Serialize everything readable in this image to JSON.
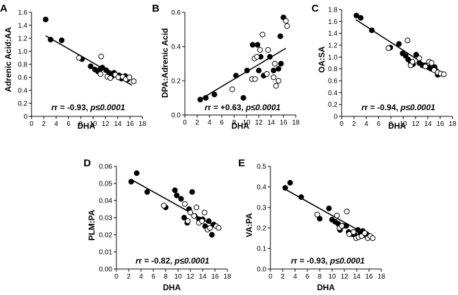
{
  "chart_data": [
    {
      "type": "scatter",
      "panel_label": "A",
      "xlabel": "DHA",
      "ylabel": "Adrenic Acid:AA",
      "xlim": [
        0,
        18
      ],
      "ylim": [
        0,
        1.6
      ],
      "xticks": [
        "0",
        "2",
        "4",
        "6",
        "8",
        "10",
        "12",
        "14",
        "16",
        "18"
      ],
      "yticks": [
        "0",
        "0.2",
        "0.4",
        "0.6",
        "0.8",
        "1.0",
        "1.2",
        "1.4",
        "1.6"
      ],
      "stat_r": "r = -0.93, ",
      "stat_p": "p≤0.0001",
      "fit": [
        [
          2.3,
          1.24
        ],
        [
          16.3,
          0.48
        ]
      ],
      "series": [
        {
          "name": "filled",
          "points": [
            [
              2.3,
              1.49
            ],
            [
              3.1,
              1.18
            ],
            [
              4.9,
              1.17
            ],
            [
              8.2,
              0.88
            ],
            [
              9.6,
              0.77
            ],
            [
              10.3,
              0.72
            ],
            [
              10.8,
              0.69
            ],
            [
              11.2,
              0.73
            ],
            [
              11.5,
              0.75
            ],
            [
              12.1,
              0.71
            ],
            [
              12.6,
              0.67
            ],
            [
              13.1,
              0.62
            ],
            [
              13.4,
              0.67
            ],
            [
              14.2,
              0.63
            ],
            [
              14.6,
              0.58
            ],
            [
              15.2,
              0.62
            ],
            [
              15.6,
              0.57
            ]
          ]
        },
        {
          "name": "open",
          "points": [
            [
              7.7,
              0.9
            ],
            [
              11.3,
              0.92
            ],
            [
              11.2,
              0.65
            ],
            [
              12.3,
              0.61
            ],
            [
              12.8,
              0.59
            ],
            [
              13.6,
              0.64
            ],
            [
              14.1,
              0.6
            ],
            [
              14.8,
              0.61
            ],
            [
              15.3,
              0.57
            ],
            [
              15.9,
              0.6
            ],
            [
              16.6,
              0.54
            ]
          ]
        }
      ]
    },
    {
      "type": "scatter",
      "panel_label": "B",
      "xlabel": "DHA",
      "ylabel": "DPA:Adrenic Acid",
      "xlim": [
        0,
        18
      ],
      "ylim": [
        0,
        0.6
      ],
      "xticks": [
        "0",
        "2",
        "4",
        "6",
        "8",
        "10",
        "12",
        "14",
        "16",
        "18"
      ],
      "yticks": [
        "0.0",
        "0.2",
        "0.4",
        "0.6"
      ],
      "stat_r": "r = +0.63, ",
      "stat_p": "p≤0.0001",
      "fit": [
        [
          2.3,
          0.087
        ],
        [
          16.4,
          0.39
        ]
      ],
      "series": [
        {
          "name": "filled",
          "points": [
            [
              2.5,
              0.09
            ],
            [
              3.4,
              0.1
            ],
            [
              4.8,
              0.12
            ],
            [
              8.3,
              0.23
            ],
            [
              9.5,
              0.1
            ],
            [
              10.1,
              0.26
            ],
            [
              11.0,
              0.41
            ],
            [
              11.8,
              0.41
            ],
            [
              12.0,
              0.26
            ],
            [
              12.3,
              0.34
            ],
            [
              12.8,
              0.23
            ],
            [
              13.8,
              0.34
            ],
            [
              14.4,
              0.26
            ],
            [
              15.2,
              0.27
            ],
            [
              15.5,
              0.46
            ],
            [
              15.6,
              0.3
            ],
            [
              16.0,
              0.57
            ]
          ]
        },
        {
          "name": "open",
          "points": [
            [
              7.7,
              0.15
            ],
            [
              10.9,
              0.21
            ],
            [
              11.3,
              0.33
            ],
            [
              11.4,
              0.21
            ],
            [
              11.7,
              0.34
            ],
            [
              12.2,
              0.38
            ],
            [
              12.6,
              0.47
            ],
            [
              13.3,
              0.24
            ],
            [
              13.5,
              0.38
            ],
            [
              14.4,
              0.22
            ],
            [
              14.6,
              0.3
            ],
            [
              14.8,
              0.17
            ],
            [
              15.2,
              0.2
            ],
            [
              16.4,
              0.55
            ],
            [
              16.6,
              0.52
            ]
          ]
        }
      ]
    },
    {
      "type": "scatter",
      "panel_label": "C",
      "xlabel": "DHA",
      "ylabel": "OA:SA",
      "xlim": [
        0,
        18
      ],
      "ylim": [
        0,
        1.8
      ],
      "xticks": [
        "0",
        "2",
        "4",
        "6",
        "8",
        "10",
        "12",
        "14",
        "16",
        "18"
      ],
      "yticks": [
        "0",
        "0.2",
        "0.4",
        "0.6",
        "0.8",
        "1.0",
        "1.2",
        "1.4",
        "1.6",
        "1.8"
      ],
      "stat_r": "r = -0.94, ",
      "stat_p": "p≤0.0001",
      "fit": [
        [
          2.3,
          1.63
        ],
        [
          16.6,
          0.67
        ]
      ],
      "series": [
        {
          "name": "filled",
          "points": [
            [
              2.4,
              1.7
            ],
            [
              3.1,
              1.66
            ],
            [
              4.9,
              1.45
            ],
            [
              7.9,
              1.16
            ],
            [
              9.3,
              1.22
            ],
            [
              9.9,
              1.06
            ],
            [
              10.4,
              1.02
            ],
            [
              10.8,
              0.96
            ],
            [
              11.2,
              0.92
            ],
            [
              11.6,
              0.88
            ],
            [
              12.1,
              1.04
            ],
            [
              12.6,
              0.9
            ],
            [
              13.1,
              0.86
            ],
            [
              13.5,
              0.86
            ],
            [
              14.2,
              0.82
            ],
            [
              14.6,
              0.8
            ],
            [
              15.1,
              0.83
            ],
            [
              15.4,
              0.76
            ],
            [
              15.6,
              0.7
            ]
          ]
        },
        {
          "name": "open",
          "points": [
            [
              7.6,
              1.15
            ],
            [
              10.7,
              1.28
            ],
            [
              11.2,
              0.86
            ],
            [
              11.5,
              0.92
            ],
            [
              12.6,
              0.98
            ],
            [
              13.6,
              0.84
            ],
            [
              14.2,
              0.92
            ],
            [
              14.6,
              0.9
            ],
            [
              15.0,
              0.78
            ],
            [
              15.6,
              0.74
            ],
            [
              16.1,
              0.72
            ],
            [
              16.6,
              0.71
            ]
          ]
        }
      ]
    },
    {
      "type": "scatter",
      "panel_label": "D",
      "xlabel": "DHA",
      "ylabel": "PLM:PA",
      "xlim": [
        0,
        18
      ],
      "ylim": [
        0,
        0.06
      ],
      "xticks": [
        "0",
        "2",
        "4",
        "6",
        "8",
        "10",
        "12",
        "14",
        "16",
        "18"
      ],
      "yticks": [
        "0.00",
        "0.01",
        "0.02",
        "0.03",
        "0.04",
        "0.05",
        "0.06"
      ],
      "stat_r": "r = -0.82, ",
      "stat_p": "p≤0.0001",
      "fit": [
        [
          2.3,
          0.0525
        ],
        [
          16.5,
          0.024
        ]
      ],
      "series": [
        {
          "name": "filled",
          "points": [
            [
              2.4,
              0.051
            ],
            [
              3.3,
              0.056
            ],
            [
              5.0,
              0.045
            ],
            [
              8.0,
              0.036
            ],
            [
              9.5,
              0.046
            ],
            [
              9.8,
              0.043
            ],
            [
              10.5,
              0.041
            ],
            [
              11.0,
              0.03
            ],
            [
              11.5,
              0.027
            ],
            [
              11.8,
              0.035
            ],
            [
              12.3,
              0.045
            ],
            [
              12.7,
              0.031
            ],
            [
              13.4,
              0.029
            ],
            [
              14.0,
              0.029
            ],
            [
              14.4,
              0.025
            ],
            [
              15.0,
              0.028
            ],
            [
              15.5,
              0.02
            ],
            [
              15.8,
              0.026
            ]
          ]
        },
        {
          "name": "open",
          "points": [
            [
              7.7,
              0.037
            ],
            [
              11.1,
              0.038
            ],
            [
              11.6,
              0.028
            ],
            [
              12.0,
              0.033
            ],
            [
              12.6,
              0.031
            ],
            [
              13.0,
              0.036
            ],
            [
              13.4,
              0.027
            ],
            [
              13.9,
              0.028
            ],
            [
              14.3,
              0.033
            ],
            [
              14.8,
              0.023
            ],
            [
              15.2,
              0.024
            ],
            [
              16.2,
              0.025
            ],
            [
              16.6,
              0.024
            ]
          ]
        }
      ]
    },
    {
      "type": "scatter",
      "panel_label": "E",
      "xlabel": "DHA",
      "ylabel": "VA:PA",
      "xlim": [
        0,
        18
      ],
      "ylim": [
        0,
        0.5
      ],
      "xticks": [
        "0",
        "2",
        "4",
        "6",
        "8",
        "10",
        "12",
        "14",
        "16",
        "18"
      ],
      "yticks": [
        "0.0",
        "0.1",
        "0.2",
        "0.3",
        "0.4",
        "0.5"
      ],
      "stat_r": "r = -0.93, ",
      "stat_p": "p≤0.0001",
      "fit": [
        [
          2.3,
          0.39
        ],
        [
          16.6,
          0.15
        ]
      ],
      "series": [
        {
          "name": "filled",
          "points": [
            [
              2.4,
              0.395
            ],
            [
              3.2,
              0.42
            ],
            [
              5.0,
              0.35
            ],
            [
              8.0,
              0.245
            ],
            [
              9.5,
              0.295
            ],
            [
              10.0,
              0.24
            ],
            [
              10.5,
              0.23
            ],
            [
              11.0,
              0.22
            ],
            [
              11.3,
              0.19
            ],
            [
              11.8,
              0.21
            ],
            [
              12.3,
              0.21
            ],
            [
              12.7,
              0.18
            ],
            [
              13.2,
              0.17
            ],
            [
              13.7,
              0.165
            ],
            [
              14.2,
              0.19
            ],
            [
              14.6,
              0.17
            ],
            [
              15.0,
              0.185
            ],
            [
              15.4,
              0.165
            ],
            [
              15.6,
              0.17
            ]
          ]
        },
        {
          "name": "open",
          "points": [
            [
              7.6,
              0.265
            ],
            [
              10.8,
              0.26
            ],
            [
              11.2,
              0.2
            ],
            [
              11.6,
              0.21
            ],
            [
              12.4,
              0.28
            ],
            [
              12.8,
              0.17
            ],
            [
              13.5,
              0.18
            ],
            [
              13.9,
              0.15
            ],
            [
              14.3,
              0.155
            ],
            [
              14.8,
              0.16
            ],
            [
              15.3,
              0.175
            ],
            [
              15.8,
              0.15
            ],
            [
              16.2,
              0.16
            ],
            [
              16.6,
              0.15
            ]
          ]
        }
      ]
    }
  ]
}
